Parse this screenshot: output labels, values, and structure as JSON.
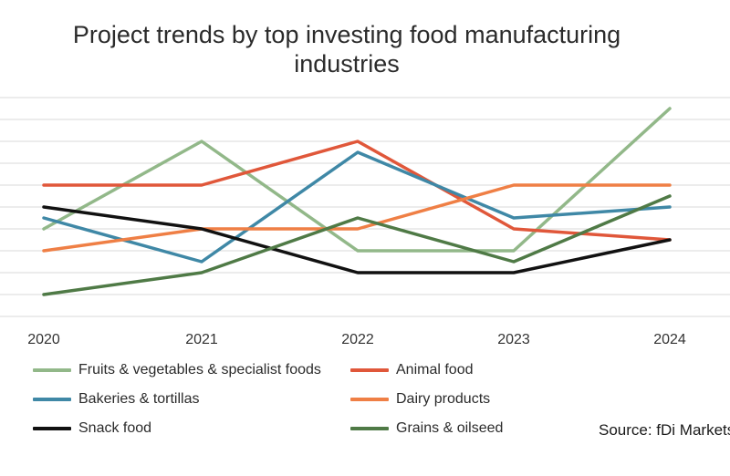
{
  "chart_data": {
    "type": "line",
    "title_line1": "Project trends by top investing food manufacturing",
    "title_line2": "industries",
    "xlabel": "",
    "ylabel": "",
    "categories": [
      "2020",
      "2021",
      "2022",
      "2023",
      "2024"
    ],
    "ylim": [
      0,
      10
    ],
    "grid": true,
    "y_tick_labels_shown": false,
    "legend_placement": "bottom",
    "series": [
      {
        "name": "Fruits & vegetables & specialist foods",
        "color": "#92b889",
        "values": [
          4,
          8,
          3,
          3,
          9.5
        ]
      },
      {
        "name": "Animal food",
        "color": "#e0573a",
        "values": [
          6,
          6,
          8,
          4,
          3.5
        ]
      },
      {
        "name": "Bakeries & tortillas",
        "color": "#3f88a6",
        "values": [
          4.5,
          2.5,
          7.5,
          4.5,
          5
        ]
      },
      {
        "name": "Dairy products",
        "color": "#ef7f45",
        "values": [
          3,
          4,
          4,
          6,
          6
        ]
      },
      {
        "name": "Snack food",
        "color": "#111111",
        "values": [
          5,
          4,
          2,
          2,
          3.5
        ]
      },
      {
        "name": "Grains & oilseed",
        "color": "#4f7a46",
        "values": [
          1,
          2,
          4.5,
          2.5,
          5.5
        ]
      }
    ],
    "source": "Source: fDi Markets"
  }
}
